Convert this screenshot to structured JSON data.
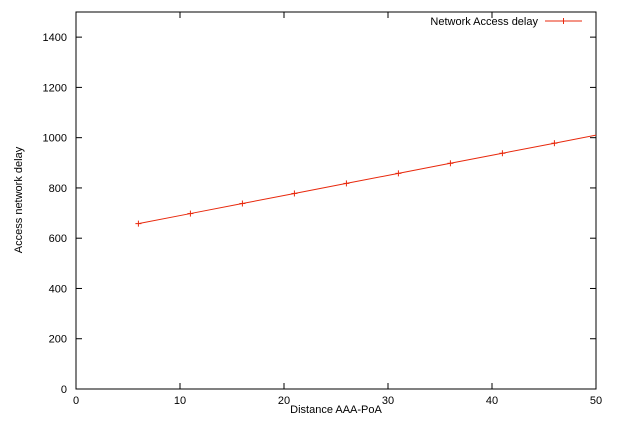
{
  "chart_data": {
    "type": "line",
    "title": "",
    "xlabel": "Distance AAA-PoA",
    "ylabel": "Access network delay",
    "xlim": [
      0,
      50
    ],
    "ylim": [
      0,
      1500
    ],
    "xticks": [
      0,
      10,
      20,
      30,
      40,
      50
    ],
    "yticks": [
      0,
      200,
      400,
      600,
      800,
      1000,
      1200,
      1400
    ],
    "grid": false,
    "legend_position": "top-right",
    "series": [
      {
        "name": "Network Access delay",
        "color": "#e8280c",
        "marker": "plus",
        "x": [
          6,
          11,
          16,
          21,
          26,
          31,
          36,
          41,
          46,
          51
        ],
        "y": [
          658,
          698,
          738,
          778,
          818,
          858,
          898,
          938,
          978,
          1018
        ]
      }
    ]
  }
}
